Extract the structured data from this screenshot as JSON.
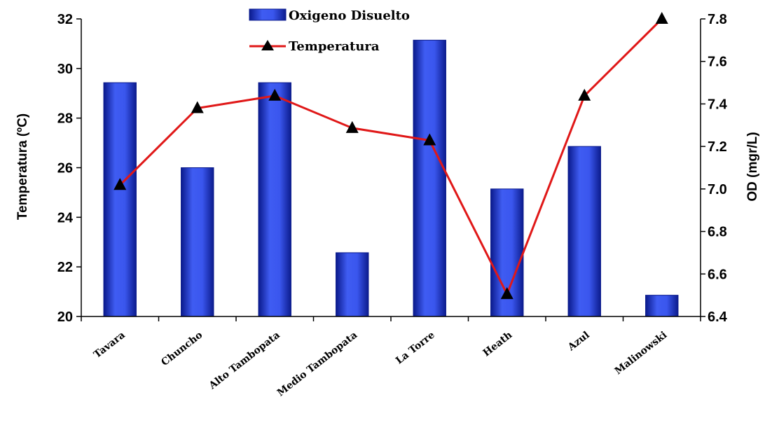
{
  "chart_data": {
    "type": "bar",
    "categories": [
      "Tavara",
      "Chuncho",
      "Alto Tambopata",
      "Medio Tambopata",
      "La Torre",
      "Heath",
      "Azul",
      "Malinowski"
    ],
    "series": [
      {
        "name": "Oxigeno Disuelto",
        "type": "bar",
        "axis": "right",
        "color": "#2f45d8",
        "values": [
          7.5,
          7.1,
          7.5,
          6.7,
          7.7,
          7.0,
          7.2,
          6.5
        ]
      },
      {
        "name": "Temperatura",
        "type": "line",
        "axis": "left",
        "color": "#e01818",
        "marker": "triangle",
        "values": [
          25.3,
          28.4,
          28.9,
          27.6,
          27.1,
          20.9,
          28.9,
          32.0
        ]
      }
    ],
    "ylabel": "Temperatura (ºC)",
    "ylim": [
      20,
      32
    ],
    "yticks": [
      "20",
      "22",
      "24",
      "26",
      "28",
      "30",
      "32"
    ],
    "y2label": "OD (mgr/L)",
    "y2lim": [
      6.4,
      7.8
    ],
    "y2ticks": [
      "6.4",
      "6.6",
      "6.8",
      "7.0",
      "7.2",
      "7.4",
      "7.6",
      "7.8"
    ],
    "legend_position": "top-center",
    "grid": false
  }
}
